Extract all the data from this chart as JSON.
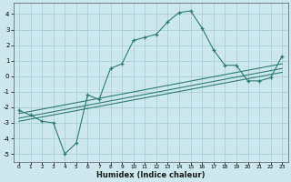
{
  "xlabel": "Humidex (Indice chaleur)",
  "ylabel": "",
  "bg_color": "#cce8ee",
  "grid_color": "#aacdd6",
  "line_color": "#2d7d6e",
  "xlim": [
    -0.5,
    23.5
  ],
  "ylim": [
    -5.5,
    4.7
  ],
  "xticks": [
    0,
    1,
    2,
    3,
    4,
    5,
    6,
    7,
    8,
    9,
    10,
    11,
    12,
    13,
    14,
    15,
    16,
    17,
    18,
    19,
    20,
    21,
    22,
    23
  ],
  "yticks": [
    -5,
    -4,
    -3,
    -2,
    -1,
    0,
    1,
    2,
    3,
    4
  ],
  "main_x": [
    0,
    1,
    2,
    3,
    4,
    5,
    6,
    7,
    8,
    9,
    10,
    11,
    12,
    13,
    14,
    15,
    16,
    17,
    18,
    19,
    20,
    21,
    22,
    23
  ],
  "main_y": [
    -2.2,
    -2.5,
    -2.9,
    -3.0,
    -5.0,
    -4.3,
    -1.2,
    -1.5,
    0.5,
    0.8,
    2.3,
    2.5,
    2.7,
    3.5,
    4.1,
    4.2,
    3.1,
    1.7,
    0.7,
    0.7,
    -0.3,
    -0.3,
    -0.1,
    1.3
  ],
  "line1_x": [
    0,
    23
  ],
  "line1_y": [
    -2.4,
    0.8
  ],
  "line2_x": [
    0,
    23
  ],
  "line2_y": [
    -2.7,
    0.5
  ],
  "line3_x": [
    0,
    23
  ],
  "line3_y": [
    -2.9,
    0.25
  ]
}
